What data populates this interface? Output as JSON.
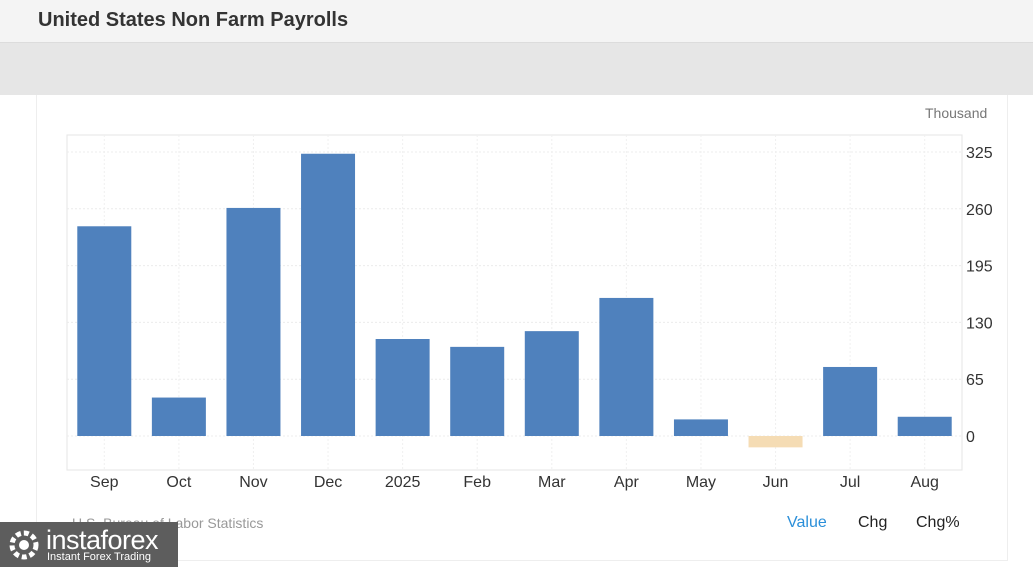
{
  "title": "United States Non Farm Payrolls",
  "unit": "Thousand",
  "source": "U.S. Bureau of Labor Statistics",
  "tabs": {
    "value": "Value",
    "chg": "Chg",
    "chg_pct": "Chg%"
  },
  "colors": {
    "positive_bar": "#4f81bd",
    "negative_bar": "#f5dcb4",
    "active_tab": "#2b8fd9"
  },
  "watermark": {
    "name": "instaforex",
    "tagline": "Instant Forex Trading"
  },
  "chart_data": {
    "type": "bar",
    "categories": [
      "Sep",
      "Oct",
      "Nov",
      "Dec",
      "2025",
      "Feb",
      "Mar",
      "Apr",
      "May",
      "Jun",
      "Jul",
      "Aug"
    ],
    "values": [
      240,
      44,
      261,
      323,
      111,
      102,
      120,
      158,
      19,
      -13,
      79,
      22
    ],
    "yticks": [
      0,
      65,
      130,
      195,
      260,
      325
    ],
    "ylim": [
      -40,
      345
    ],
    "grid": true,
    "y_axis_side": "right"
  }
}
